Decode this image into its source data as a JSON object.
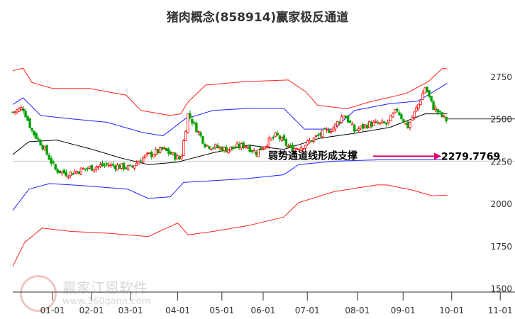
{
  "chart_data": {
    "type": "candlestick",
    "title": "猪肉概念(858914)赢家极反通道",
    "ylim": [
      1477,
      3035
    ],
    "xlim_days": [
      -27,
      314
    ],
    "yticks": [
      1500,
      1750,
      2000,
      2250,
      2500,
      2750
    ],
    "xticks": [
      {
        "day": 0,
        "label": "01-01"
      },
      {
        "day": 26.5,
        "label": "02-01"
      },
      {
        "day": 53,
        "label": "03-01"
      },
      {
        "day": 85,
        "label": "04-01"
      },
      {
        "day": 115,
        "label": "05-01"
      },
      {
        "day": 143,
        "label": "06-01"
      },
      {
        "day": 173,
        "label": "07-01"
      },
      {
        "day": 207,
        "label": "08-01"
      },
      {
        "day": 238,
        "label": "09-01"
      },
      {
        "day": 271,
        "label": "10-01"
      },
      {
        "day": 304,
        "label": "11-01"
      }
    ],
    "price": [
      [
        -27,
        2540
      ],
      [
        -20,
        2565
      ],
      [
        -14,
        2430
      ],
      [
        -7,
        2345
      ],
      [
        2,
        2200
      ],
      [
        10,
        2175
      ],
      [
        22,
        2205
      ],
      [
        37,
        2230
      ],
      [
        53,
        2210
      ],
      [
        61,
        2270
      ],
      [
        75,
        2320
      ],
      [
        87,
        2260
      ],
      [
        92,
        2530
      ],
      [
        104,
        2345
      ],
      [
        118,
        2320
      ],
      [
        131,
        2345
      ],
      [
        138,
        2300
      ],
      [
        152,
        2405
      ],
      [
        162,
        2320
      ],
      [
        171,
        2345
      ],
      [
        181,
        2405
      ],
      [
        191,
        2450
      ],
      [
        198,
        2530
      ],
      [
        205,
        2430
      ],
      [
        215,
        2470
      ],
      [
        227,
        2470
      ],
      [
        234,
        2555
      ],
      [
        241,
        2450
      ],
      [
        249,
        2595
      ],
      [
        253,
        2690
      ],
      [
        258,
        2575
      ],
      [
        265,
        2510
      ],
      [
        268,
        2490
      ]
    ],
    "last_price": 2500,
    "series": [
      {
        "name": "upper-outer",
        "color": "#ff2020",
        "points": [
          [
            -27,
            2785
          ],
          [
            -20,
            2800
          ],
          [
            -14,
            2715
          ],
          [
            0,
            2680
          ],
          [
            25,
            2680
          ],
          [
            50,
            2640
          ],
          [
            60,
            2550
          ],
          [
            80,
            2520
          ],
          [
            87,
            2530
          ],
          [
            92,
            2600
          ],
          [
            104,
            2700
          ],
          [
            130,
            2720
          ],
          [
            160,
            2730
          ],
          [
            172,
            2660
          ],
          [
            180,
            2580
          ],
          [
            200,
            2560
          ],
          [
            215,
            2600
          ],
          [
            240,
            2650
          ],
          [
            255,
            2720
          ],
          [
            265,
            2800
          ],
          [
            268,
            2795
          ]
        ]
      },
      {
        "name": "upper-inner",
        "color": "#2020ff",
        "points": [
          [
            -27,
            2585
          ],
          [
            -20,
            2625
          ],
          [
            -8,
            2520
          ],
          [
            13,
            2500
          ],
          [
            37,
            2480
          ],
          [
            61,
            2420
          ],
          [
            75,
            2400
          ],
          [
            90,
            2500
          ],
          [
            109,
            2550
          ],
          [
            133,
            2562
          ],
          [
            157,
            2562
          ],
          [
            171,
            2440
          ],
          [
            191,
            2440
          ],
          [
            205,
            2550
          ],
          [
            229,
            2590
          ],
          [
            248,
            2605
          ],
          [
            268,
            2710
          ]
        ]
      },
      {
        "name": "middle",
        "color": "#000000",
        "points": [
          [
            -27,
            2290
          ],
          [
            -16,
            2365
          ],
          [
            3,
            2375
          ],
          [
            27,
            2320
          ],
          [
            46,
            2270
          ],
          [
            65,
            2230
          ],
          [
            85,
            2245
          ],
          [
            109,
            2300
          ],
          [
            133,
            2345
          ],
          [
            157,
            2320
          ],
          [
            181,
            2385
          ],
          [
            205,
            2415
          ],
          [
            229,
            2450
          ],
          [
            253,
            2530
          ],
          [
            268,
            2530
          ]
        ]
      },
      {
        "name": "lower-inner",
        "color": "#2020ff",
        "points": [
          [
            -27,
            1960
          ],
          [
            -16,
            2085
          ],
          [
            -2,
            2118
          ],
          [
            22,
            2105
          ],
          [
            51,
            2085
          ],
          [
            65,
            2030
          ],
          [
            80,
            2040
          ],
          [
            89,
            2125
          ],
          [
            109,
            2135
          ],
          [
            133,
            2148
          ],
          [
            157,
            2170
          ],
          [
            167,
            2230
          ],
          [
            191,
            2250
          ],
          [
            220,
            2258
          ],
          [
            253,
            2258
          ],
          [
            268,
            2260
          ]
        ]
      },
      {
        "name": "lower-outer",
        "color": "#ff2020",
        "points": [
          [
            -27,
            1630
          ],
          [
            -19,
            1770
          ],
          [
            -7,
            1855
          ],
          [
            13,
            1835
          ],
          [
            37,
            1825
          ],
          [
            65,
            1805
          ],
          [
            85,
            1885
          ],
          [
            92,
            1815
          ],
          [
            109,
            1835
          ],
          [
            133,
            1870
          ],
          [
            157,
            1920
          ],
          [
            167,
            2005
          ],
          [
            191,
            2070
          ],
          [
            220,
            2110
          ],
          [
            227,
            2110
          ],
          [
            244,
            2080
          ],
          [
            258,
            2045
          ],
          [
            268,
            2050
          ]
        ]
      }
    ],
    "annotation": {
      "text": "弱势通道线形成支撑",
      "value_label": "2279.7769",
      "value": 2279.7769,
      "color": "#e0006a"
    }
  },
  "watermark": {
    "seal": "江赢恩家",
    "name": "赢家江恩软件",
    "url": "www.360gann.com"
  }
}
